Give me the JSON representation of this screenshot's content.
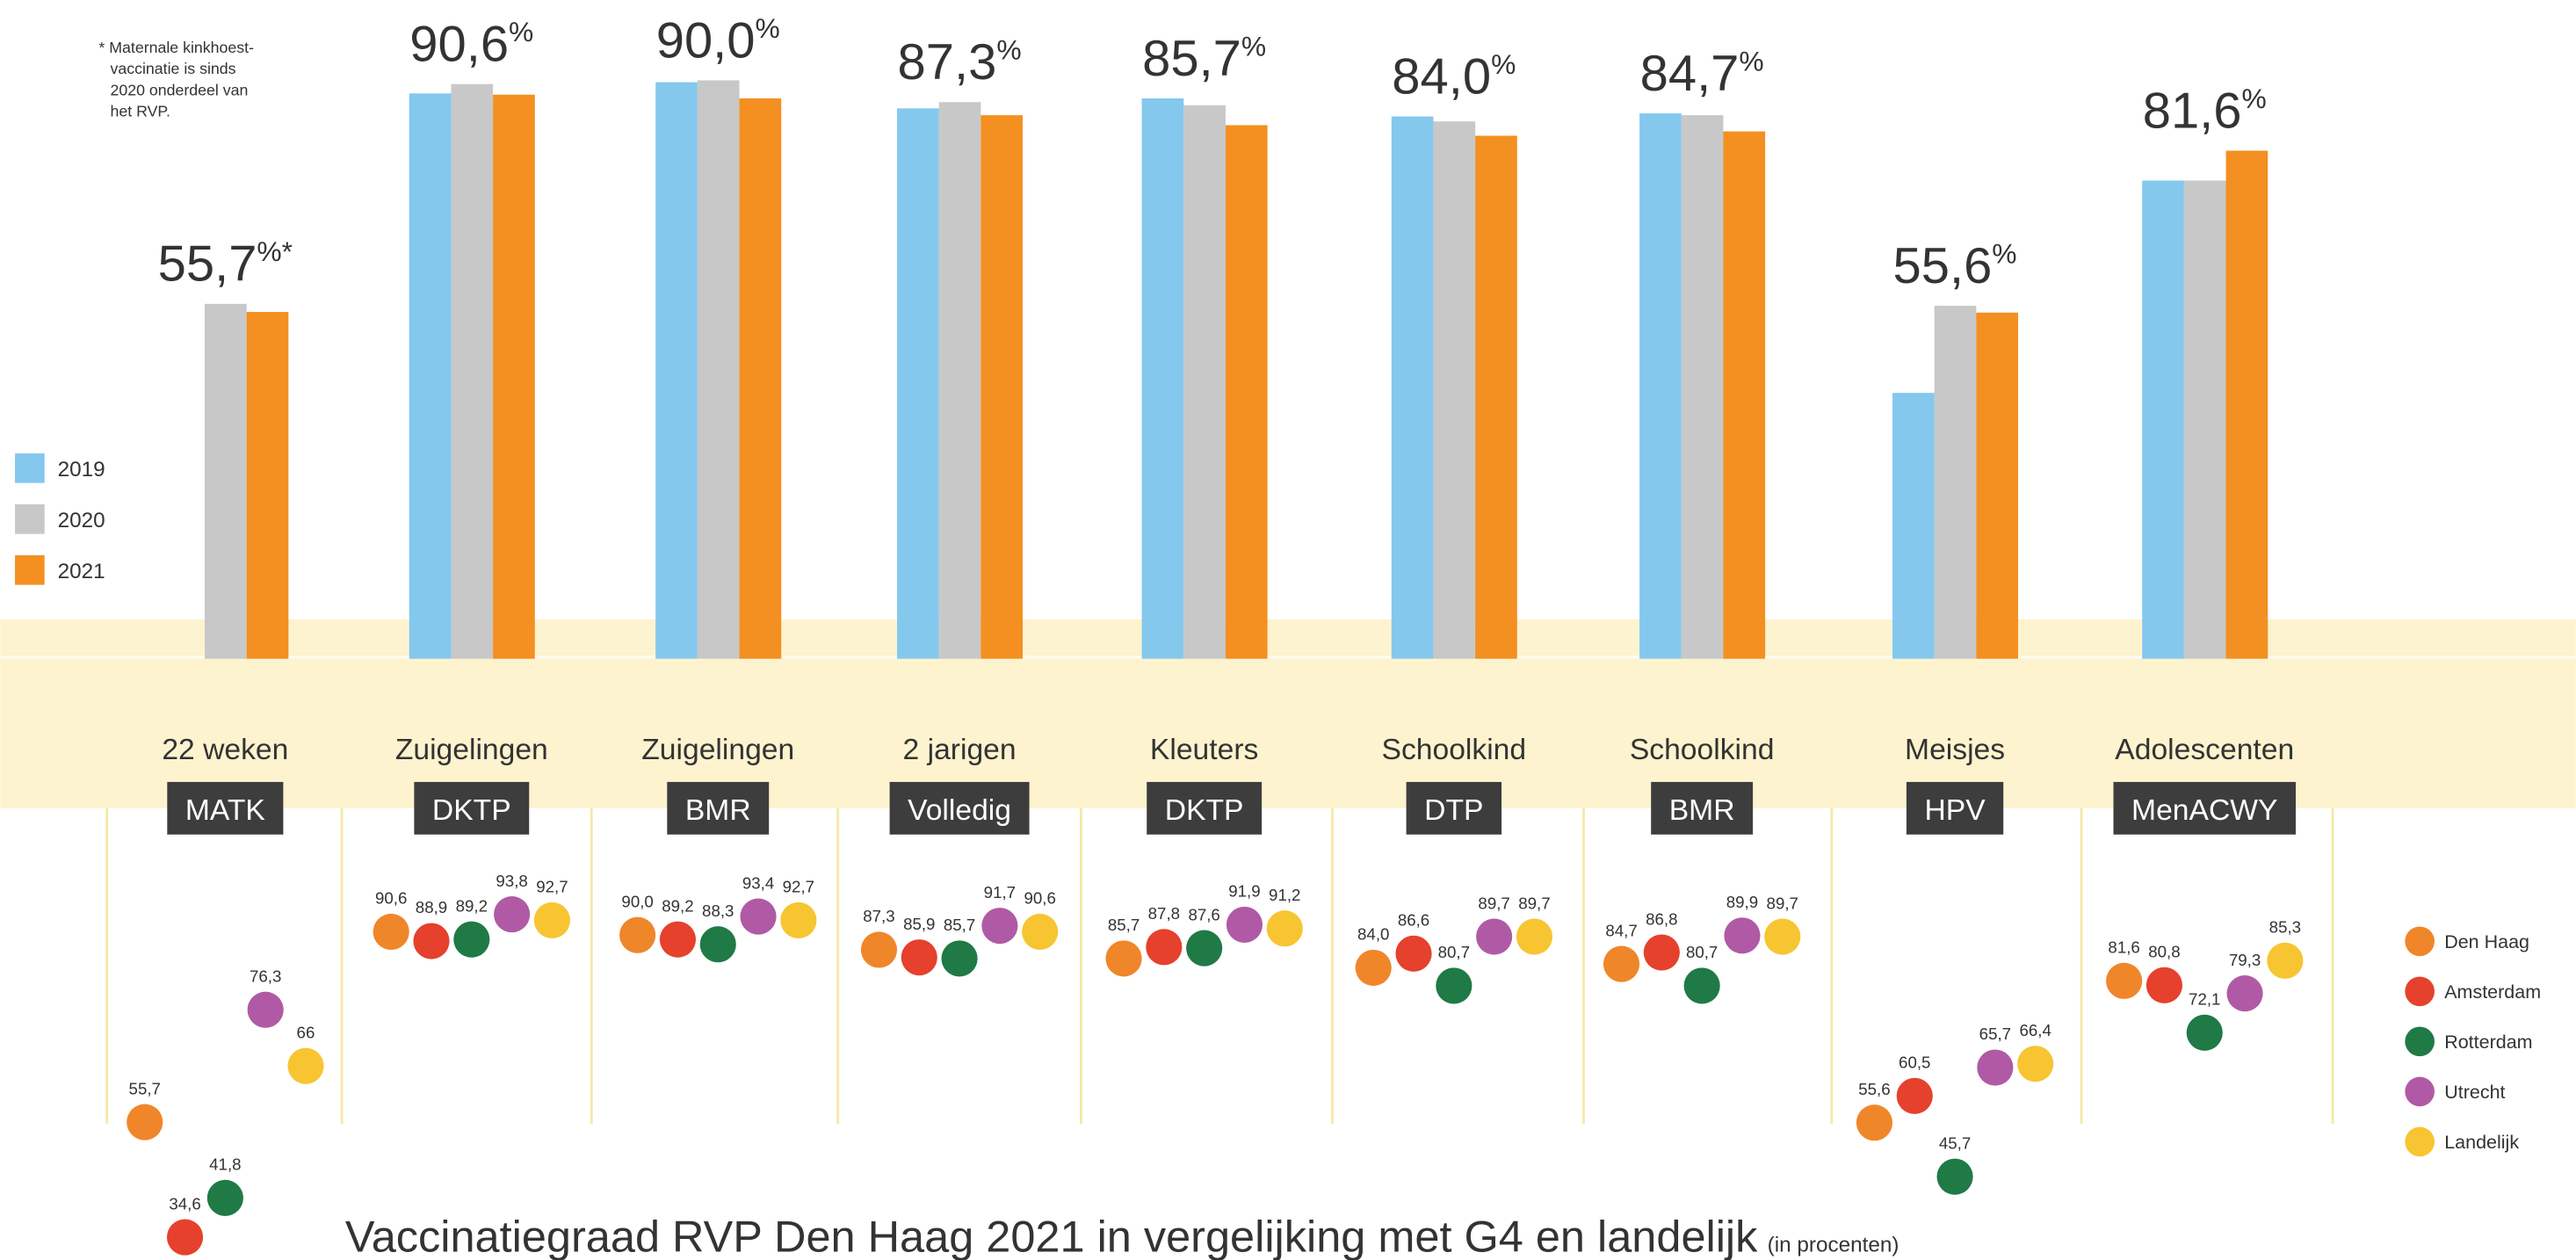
{
  "chart_data": [
    {
      "type": "bar",
      "title": "Vaccinatiegraad RVP Den Haag 2021 in vergelijking met G4 en landelijk",
      "subtitle": "(in procenten)",
      "footnote": [
        "* Maternale kinkhoest-",
        "vaccinatie is sinds",
        "2020 onderdeel van",
        "het RVP."
      ],
      "categories": [
        "22 weken",
        "Zuigelingen",
        "Zuigelingen",
        "2 jarigen",
        "Kleuters",
        "Schoolkind",
        "Schoolkind",
        "Meisjes",
        "Adolescenten"
      ],
      "subcategories": [
        "MATK",
        "DKTP",
        "BMR",
        "Volledig",
        "DKTP",
        "DTP",
        "BMR",
        "HPV",
        "MenACWY"
      ],
      "ylim": [
        0,
        100
      ],
      "series": [
        {
          "name": "2019",
          "color": "#84c8ee",
          "values": [
            null,
            90.8,
            92.6,
            88.4,
            90.0,
            87.1,
            87.6,
            42.7,
            76.8
          ]
        },
        {
          "name": "2020",
          "color": "#c8c8c8",
          "values": [
            57.0,
            92.3,
            92.9,
            89.4,
            88.9,
            86.3,
            87.3,
            56.7,
            76.8
          ]
        },
        {
          "name": "2021",
          "color": "#f39021",
          "values": [
            55.7,
            90.6,
            90.0,
            87.3,
            85.7,
            84.0,
            84.7,
            55.6,
            81.6
          ],
          "value_labels": [
            "55,7%*",
            "90,6%",
            "90,0%",
            "87,3%",
            "85,7%",
            "84,0%",
            "84,7%",
            "55,6%",
            "81,6%"
          ]
        }
      ]
    },
    {
      "type": "dot",
      "ylim": [
        0,
        100
      ],
      "series": [
        {
          "name": "Den Haag",
          "color": "#f0862a",
          "values": [
            55.7,
            90.6,
            90.0,
            87.3,
            85.7,
            84.0,
            84.7,
            55.6,
            81.6
          ],
          "value_labels": [
            "55,7",
            "90,6",
            "90,0",
            "87,3",
            "85,7",
            "84,0",
            "84,7",
            "55,6",
            "81,6"
          ]
        },
        {
          "name": "Amsterdam",
          "color": "#e5412d",
          "values": [
            34.6,
            88.9,
            89.2,
            85.9,
            87.8,
            86.6,
            86.8,
            60.5,
            80.8
          ],
          "value_labels": [
            "34,6",
            "88,9",
            "89,2",
            "85,9",
            "87,8",
            "86,6",
            "86,8",
            "60,5",
            "80,8"
          ]
        },
        {
          "name": "Rotterdam",
          "color": "#1f7a46",
          "values": [
            41.8,
            89.2,
            88.3,
            85.7,
            87.6,
            80.7,
            80.7,
            45.7,
            72.1
          ],
          "value_labels": [
            "41,8",
            "89,2",
            "88,3",
            "85,7",
            "87,6",
            "80,7",
            "80,7",
            "45,7",
            "72,1"
          ]
        },
        {
          "name": "Utrecht",
          "color": "#b05aa5",
          "values": [
            76.3,
            93.8,
            93.4,
            91.7,
            91.9,
            89.7,
            89.9,
            65.7,
            79.3
          ],
          "value_labels": [
            "76,3",
            "93,8",
            "93,4",
            "91,7",
            "91,9",
            "89,7",
            "89,9",
            "65,7",
            "79,3"
          ]
        },
        {
          "name": "Landelijk",
          "color": "#f7c531",
          "values": [
            66,
            92.7,
            92.7,
            90.6,
            91.2,
            89.7,
            89.7,
            66.4,
            85.3
          ],
          "value_labels": [
            "66",
            "92,7",
            "92,7",
            "90,6",
            "91,2",
            "89,7",
            "89,7",
            "66,4",
            "85,3"
          ]
        }
      ]
    }
  ]
}
